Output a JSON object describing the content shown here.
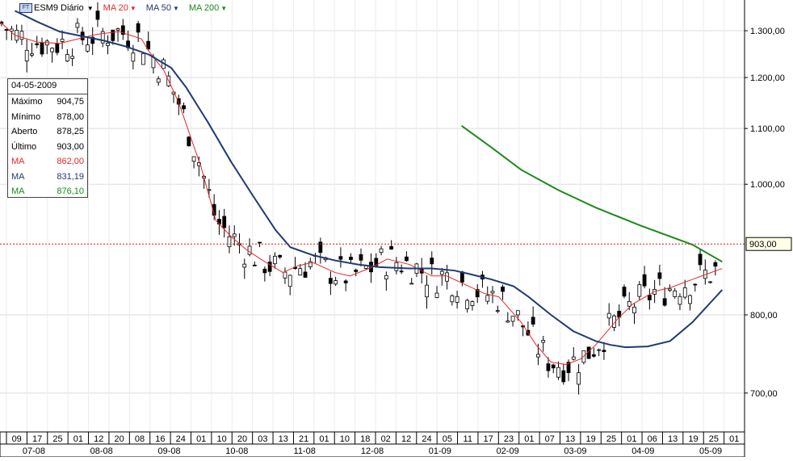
{
  "toolbar": {
    "symbol": "ESM9 Diário",
    "ft_icon": "FT",
    "ma_labels": [
      {
        "label": "MA 20",
        "color": "#e8262b"
      },
      {
        "label": "MA 50",
        "color": "#1f3b73"
      },
      {
        "label": "MA 200",
        "color": "#1a8a1a"
      }
    ]
  },
  "info_box": {
    "date": "04-05-2009",
    "rows": [
      {
        "label": "Máximo",
        "value": "904,75",
        "color": "#000000"
      },
      {
        "label": "Mínimo",
        "value": "878,00",
        "color": "#000000"
      },
      {
        "label": "Aberto",
        "value": "878,25",
        "color": "#000000"
      },
      {
        "label": "Último",
        "value": "903,00",
        "color": "#000000"
      },
      {
        "label": "MA",
        "value": "862,00",
        "color": "#e8262b"
      },
      {
        "label": "MA",
        "value": "831,19",
        "color": "#1f3b73"
      },
      {
        "label": "MA",
        "value": "876,10",
        "color": "#1a8a1a"
      }
    ]
  },
  "chart_data": {
    "type": "line",
    "scale": "log",
    "ylim": [
      655,
      1370
    ],
    "y_ticks": [
      {
        "value": 1300,
        "label": "1.300,00"
      },
      {
        "value": 1200,
        "label": "1.200,00"
      },
      {
        "value": 1100,
        "label": "1.100,00"
      },
      {
        "value": 1000,
        "label": "1.000,00"
      },
      {
        "value": 800,
        "label": "800,00"
      },
      {
        "value": 700,
        "label": "700,00"
      }
    ],
    "last_price": {
      "value": 903,
      "label": "903,00"
    },
    "x_day_labels": [
      "09",
      "17",
      "25",
      "01",
      "12",
      "20",
      "08",
      "16",
      "24",
      "01",
      "10",
      "20",
      "03",
      "13",
      "21",
      "01",
      "10",
      "18",
      "02",
      "12",
      "24",
      "05",
      "11",
      "17",
      "23",
      "01",
      "07",
      "13",
      "19",
      "25",
      "01",
      "06",
      "13",
      "19",
      "25",
      "01"
    ],
    "x_month_labels": [
      "07-08",
      "08-08",
      "09-08",
      "10-08",
      "11-08",
      "12-08",
      "01-09",
      "02-09",
      "03-09",
      "04-09",
      "05-09"
    ],
    "series": [
      {
        "name": "MA 20",
        "color": "#e8262b",
        "x": [
          0,
          0.02,
          0.05,
          0.08,
          0.1,
          0.13,
          0.16,
          0.19,
          0.2,
          0.22,
          0.24,
          0.27,
          0.29,
          0.31,
          0.33,
          0.35,
          0.38,
          0.4,
          0.42,
          0.45,
          0.47,
          0.5,
          0.52,
          0.55,
          0.58,
          0.6,
          0.63,
          0.65,
          0.67,
          0.7,
          0.72,
          0.74,
          0.76,
          0.78,
          0.8,
          0.83,
          0.85,
          0.88,
          0.9,
          0.93,
          0.95,
          0.97
        ],
        "y": [
          1320,
          1290,
          1275,
          1272,
          1280,
          1292,
          1298,
          1282,
          1255,
          1215,
          1150,
          1030,
          940,
          915,
          895,
          880,
          860,
          870,
          875,
          860,
          855,
          868,
          880,
          872,
          855,
          855,
          840,
          830,
          825,
          790,
          760,
          738,
          735,
          742,
          760,
          795,
          815,
          833,
          838,
          850,
          858,
          866
        ]
      },
      {
        "name": "MA 50",
        "color": "#1f3b73",
        "x": [
          0.02,
          0.05,
          0.08,
          0.11,
          0.14,
          0.17,
          0.2,
          0.23,
          0.25,
          0.28,
          0.31,
          0.34,
          0.37,
          0.39,
          0.42,
          0.45,
          0.48,
          0.51,
          0.55,
          0.58,
          0.61,
          0.63,
          0.66,
          0.69,
          0.71,
          0.74,
          0.77,
          0.8,
          0.82,
          0.84,
          0.87,
          0.9,
          0.93,
          0.97
        ],
        "y": [
          1345,
          1320,
          1298,
          1288,
          1278,
          1265,
          1248,
          1220,
          1180,
          1110,
          1040,
          980,
          925,
          898,
          886,
          878,
          872,
          868,
          866,
          866,
          863,
          858,
          850,
          840,
          825,
          800,
          778,
          765,
          760,
          757,
          758,
          765,
          790,
          835
        ]
      },
      {
        "name": "MA 200",
        "color": "#1a8a1a",
        "x": [
          0.62,
          0.66,
          0.7,
          0.75,
          0.8,
          0.86,
          0.93,
          0.97
        ],
        "y": [
          1105,
          1065,
          1025,
          990,
          961,
          932,
          902,
          876
        ]
      }
    ]
  }
}
